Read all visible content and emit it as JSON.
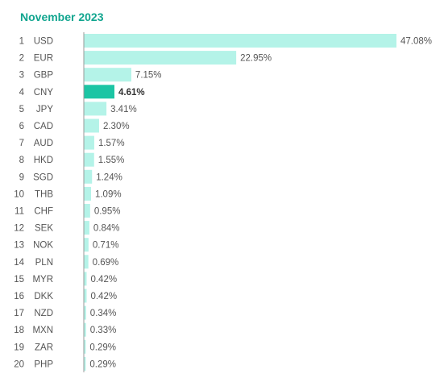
{
  "title": "November 2023",
  "colors": {
    "bar": "#b4f3e8",
    "highlight": "#1cc5a4",
    "axis": "#999999",
    "title": "#11a58f"
  },
  "chart_data": {
    "type": "bar",
    "orientation": "horizontal",
    "title": "November 2023",
    "highlight_category": "CNY",
    "xlim": [
      0,
      47.08
    ],
    "ranks": [
      "1",
      "2",
      "3",
      "4",
      "5",
      "6",
      "7",
      "8",
      "9",
      "10",
      "11",
      "12",
      "13",
      "14",
      "15",
      "16",
      "17",
      "18",
      "19",
      "20"
    ],
    "categories": [
      "USD",
      "EUR",
      "GBP",
      "CNY",
      "JPY",
      "CAD",
      "AUD",
      "HKD",
      "SGD",
      "THB",
      "CHF",
      "SEK",
      "NOK",
      "PLN",
      "MYR",
      "DKK",
      "NZD",
      "MXN",
      "ZAR",
      "PHP"
    ],
    "values": [
      47.08,
      22.95,
      7.15,
      4.61,
      3.41,
      2.3,
      1.57,
      1.55,
      1.24,
      1.09,
      0.95,
      0.84,
      0.71,
      0.69,
      0.42,
      0.42,
      0.34,
      0.33,
      0.29,
      0.29
    ],
    "labels": [
      "47.08%",
      "22.95%",
      "7.15%",
      "4.61%",
      "3.41%",
      "2.30%",
      "1.57%",
      "1.55%",
      "1.24%",
      "1.09%",
      "0.95%",
      "0.84%",
      "0.71%",
      "0.69%",
      "0.42%",
      "0.42%",
      "0.34%",
      "0.33%",
      "0.29%",
      "0.29%"
    ]
  }
}
